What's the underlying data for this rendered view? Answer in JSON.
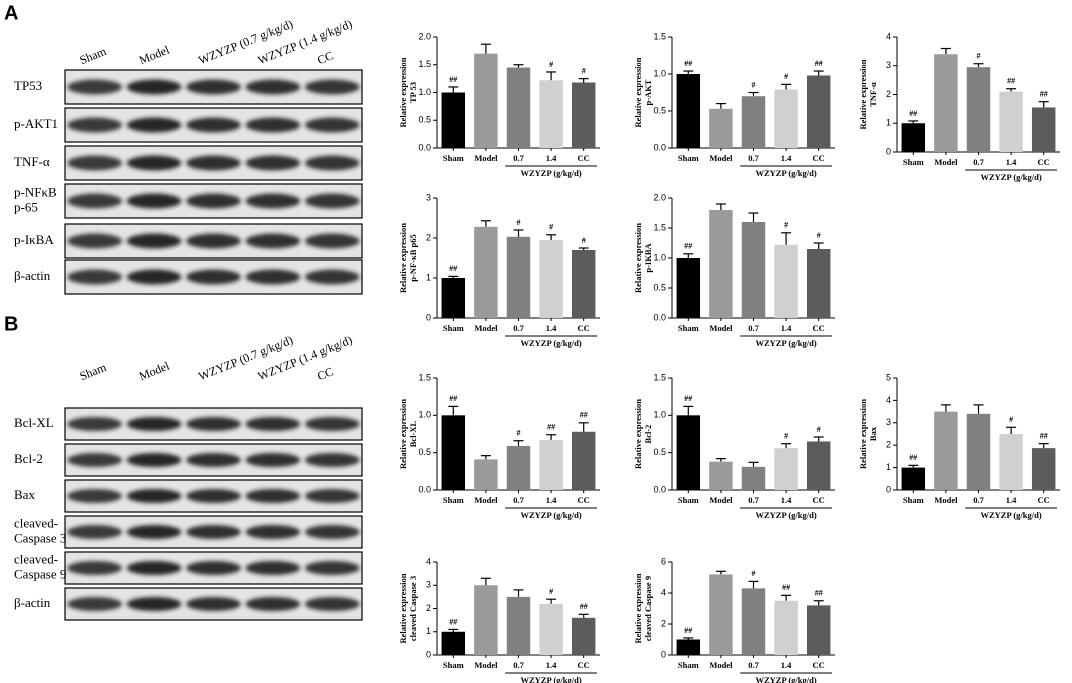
{
  "panels": [
    {
      "letter": "A",
      "lanes": [
        "Sham",
        "Model",
        "WZYZP (0.7 g/kg/d)",
        "WZYZP (1.4 g/kg/d)",
        "CC"
      ],
      "rows": [
        [
          "TP53"
        ],
        [
          "p-AKT1"
        ],
        [
          "TNF-α"
        ],
        [
          "p-NFκB",
          "p-65"
        ],
        [
          "p-IκBA"
        ],
        [
          "β-actin"
        ]
      ]
    },
    {
      "letter": "B",
      "lanes": [
        "Sham",
        "Model",
        "WZYZP (0.7 g/kg/d)",
        "WZYZP (1.4 g/kg/d)",
        "CC"
      ],
      "rows": [
        [
          "Bcl-XL"
        ],
        [
          "Bcl-2"
        ],
        [
          "Bax"
        ],
        [
          "cleaved-",
          "Caspase 3"
        ],
        [
          "cleaved-",
          "Caspase 9"
        ],
        [
          "β-actin"
        ]
      ]
    }
  ],
  "chart_data": [
    {
      "type": "bar",
      "ylabel": [
        "Relative expression",
        "TP 53"
      ],
      "categories": [
        "Sham",
        "Model",
        "0.7",
        "1.4",
        "CC"
      ],
      "group_label": "WZYZP (g/kg/d)",
      "values": [
        1.0,
        1.7,
        1.45,
        1.22,
        1.18
      ],
      "errors": [
        0.1,
        0.17,
        0.05,
        0.15,
        0.07
      ],
      "annotations": [
        "##",
        null,
        null,
        "#",
        "#"
      ],
      "colors": [
        "#000000",
        "#9a9a9a",
        "#808080",
        "#d0d0d0",
        "#5c5c5c"
      ],
      "ylim": [
        0,
        2
      ],
      "yticks": [
        {
          "value": 0,
          "label": "0.0"
        },
        0.5,
        {
          "value": 1,
          "label": "1.0"
        },
        1.5,
        {
          "value": 2,
          "label": "2.0"
        }
      ]
    },
    {
      "type": "bar",
      "ylabel": [
        "Relative expression",
        "p-AKT"
      ],
      "categories": [
        "Sham",
        "Model",
        "0.7",
        "1.4",
        "CC"
      ],
      "group_label": "WZYZP (g/kg/d)",
      "values": [
        1.0,
        0.53,
        0.7,
        0.79,
        0.98
      ],
      "errors": [
        0.04,
        0.07,
        0.05,
        0.07,
        0.06
      ],
      "annotations": [
        "##",
        null,
        "#",
        "#",
        "##"
      ],
      "colors": [
        "#000000",
        "#9a9a9a",
        "#808080",
        "#d0d0d0",
        "#5c5c5c"
      ],
      "ylim": [
        0,
        1.5
      ],
      "yticks": [
        {
          "value": 0,
          "label": "0.0"
        },
        0.5,
        {
          "value": 1,
          "label": "1.0"
        },
        1.5
      ]
    },
    {
      "type": "bar",
      "ylabel": [
        "Relative expression",
        "TNF-α"
      ],
      "categories": [
        "Sham",
        "Model",
        "0.7",
        "1.4",
        "CC"
      ],
      "group_label": "WZYZP (g/kg/d)",
      "values": [
        1.0,
        3.4,
        2.95,
        2.1,
        1.55
      ],
      "errors": [
        0.08,
        0.2,
        0.12,
        0.1,
        0.2
      ],
      "annotations": [
        "##",
        null,
        "#",
        "##",
        "##"
      ],
      "colors": [
        "#000000",
        "#9a9a9a",
        "#808080",
        "#d0d0d0",
        "#5c5c5c"
      ],
      "ylim": [
        0,
        4
      ],
      "yticks": [
        0,
        1,
        2,
        3,
        4
      ]
    },
    {
      "type": "bar",
      "ylabel": [
        "Relative expression",
        "p-NF-κB p65"
      ],
      "categories": [
        "Sham",
        "Model",
        "0.7",
        "1.4",
        "CC"
      ],
      "group_label": "WZYZP (g/kg/d)",
      "values": [
        1.0,
        2.28,
        2.03,
        1.95,
        1.7
      ],
      "errors": [
        0.04,
        0.15,
        0.17,
        0.13,
        0.05
      ],
      "annotations": [
        "##",
        null,
        "#",
        "#",
        "#"
      ],
      "colors": [
        "#000000",
        "#9a9a9a",
        "#808080",
        "#d0d0d0",
        "#5c5c5c"
      ],
      "ylim": [
        0,
        3
      ],
      "yticks": [
        0,
        1,
        2,
        3
      ]
    },
    {
      "type": "bar",
      "ylabel": [
        "Relative expression",
        "p-IKBA"
      ],
      "categories": [
        "Sham",
        "Model",
        "0.7",
        "1.4",
        "CC"
      ],
      "group_label": "WZYZP (g/kg/d)",
      "values": [
        1.0,
        1.8,
        1.6,
        1.22,
        1.15
      ],
      "errors": [
        0.07,
        0.1,
        0.15,
        0.2,
        0.1
      ],
      "annotations": [
        "##",
        null,
        null,
        "#",
        "#"
      ],
      "colors": [
        "#000000",
        "#9a9a9a",
        "#808080",
        "#d0d0d0",
        "#5c5c5c"
      ],
      "ylim": [
        0,
        2
      ],
      "yticks": [
        {
          "value": 0,
          "label": "0.0"
        },
        0.5,
        {
          "value": 1,
          "label": "1.0"
        },
        1.5,
        {
          "value": 2,
          "label": "2.0"
        }
      ]
    },
    {
      "type": "bar",
      "ylabel": [
        "Relative expression",
        "Bcl-XL"
      ],
      "categories": [
        "Sham",
        "Model",
        "0.7",
        "1.4",
        "CC"
      ],
      "group_label": "WZYZP (g/kg/d)",
      "values": [
        1.0,
        0.41,
        0.59,
        0.67,
        0.78
      ],
      "errors": [
        0.12,
        0.05,
        0.07,
        0.07,
        0.12
      ],
      "annotations": [
        "##",
        null,
        "#",
        "##",
        "##"
      ],
      "colors": [
        "#000000",
        "#9a9a9a",
        "#808080",
        "#d0d0d0",
        "#5c5c5c"
      ],
      "ylim": [
        0,
        1.5
      ],
      "yticks": [
        {
          "value": 0,
          "label": "0.0"
        },
        0.5,
        {
          "value": 1,
          "label": "1.0"
        },
        1.5
      ]
    },
    {
      "type": "bar",
      "ylabel": [
        "Relative expression",
        "Bcl-2"
      ],
      "categories": [
        "Sham",
        "Model",
        "0.7",
        "1.4",
        "CC"
      ],
      "group_label": "WZYZP (g/kg/d)",
      "values": [
        1.0,
        0.38,
        0.31,
        0.56,
        0.65
      ],
      "errors": [
        0.12,
        0.04,
        0.06,
        0.06,
        0.06
      ],
      "annotations": [
        "##",
        null,
        null,
        "#",
        "#"
      ],
      "colors": [
        "#000000",
        "#9a9a9a",
        "#808080",
        "#d0d0d0",
        "#5c5c5c"
      ],
      "ylim": [
        0,
        1.5
      ],
      "yticks": [
        {
          "value": 0,
          "label": "0.0"
        },
        0.5,
        {
          "value": 1,
          "label": "1.0"
        },
        1.5
      ]
    },
    {
      "type": "bar",
      "ylabel": [
        "Relative expression",
        "Bax"
      ],
      "categories": [
        "Sham",
        "Model",
        "0.7",
        "1.4",
        "CC"
      ],
      "group_label": "WZYZP (g/kg/d)",
      "values": [
        1.0,
        3.5,
        3.4,
        2.5,
        1.87
      ],
      "errors": [
        0.1,
        0.3,
        0.4,
        0.3,
        0.2
      ],
      "annotations": [
        "##",
        null,
        null,
        "#",
        "##"
      ],
      "colors": [
        "#000000",
        "#9a9a9a",
        "#808080",
        "#d0d0d0",
        "#5c5c5c"
      ],
      "ylim": [
        0,
        5
      ],
      "yticks": [
        0,
        1,
        2,
        3,
        4,
        5
      ]
    },
    {
      "type": "bar",
      "ylabel": [
        "Relative expression",
        "cleaved Caspase 3"
      ],
      "categories": [
        "Sham",
        "Model",
        "0.7",
        "1.4",
        "CC"
      ],
      "group_label": "WZYZP (g/kg/d)",
      "values": [
        1.0,
        3.0,
        2.5,
        2.2,
        1.6
      ],
      "errors": [
        0.1,
        0.3,
        0.3,
        0.2,
        0.15
      ],
      "annotations": [
        "##",
        null,
        null,
        "#",
        "##"
      ],
      "colors": [
        "#000000",
        "#9a9a9a",
        "#808080",
        "#d0d0d0",
        "#5c5c5c"
      ],
      "ylim": [
        0,
        4
      ],
      "yticks": [
        0,
        1,
        2,
        3,
        4
      ]
    },
    {
      "type": "bar",
      "ylabel": [
        "Relative expression",
        "cleaved Caspase 9"
      ],
      "categories": [
        "Sham",
        "Model",
        "0.7",
        "1.4",
        "CC"
      ],
      "group_label": "WZYZP (g/kg/d)",
      "values": [
        1.0,
        5.2,
        4.3,
        3.5,
        3.2
      ],
      "errors": [
        0.1,
        0.2,
        0.45,
        0.35,
        0.3
      ],
      "annotations": [
        "##",
        null,
        "#",
        "##",
        "##"
      ],
      "colors": [
        "#000000",
        "#9a9a9a",
        "#808080",
        "#d0d0d0",
        "#5c5c5c"
      ],
      "ylim": [
        0,
        6
      ],
      "yticks": [
        0,
        2,
        4,
        6
      ]
    }
  ]
}
